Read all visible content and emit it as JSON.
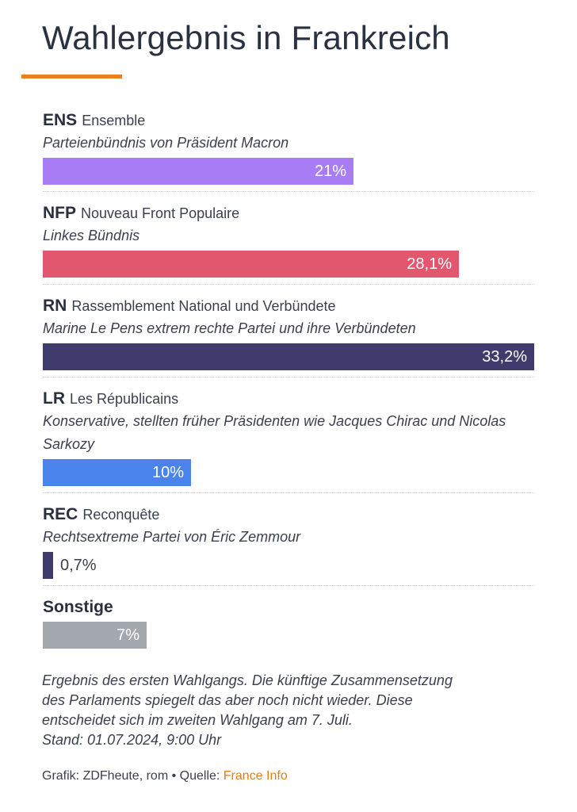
{
  "header": {
    "title": "Wahlergebnis in Frankreich",
    "accent_color": "#ee7f1d"
  },
  "chart_data": {
    "type": "bar",
    "orientation": "horizontal",
    "value_unit": "%",
    "xlim": [
      0,
      33.2
    ],
    "series": [
      {
        "abbr": "ENS",
        "name": "Ensemble",
        "description": "Parteienbündnis von Präsident Macron",
        "value": 21,
        "label": "21%",
        "color": "#a77cf5"
      },
      {
        "abbr": "NFP",
        "name": "Nouveau Front Populaire",
        "description": "Linkes Bündnis",
        "value": 28.1,
        "label": "28,1%",
        "color": "#e2566e"
      },
      {
        "abbr": "RN",
        "name": "Rassemblement National und Verbündete",
        "description": "Marine Le Pens extrem rechte Partei und ihre Verbündeten",
        "value": 33.2,
        "label": "33,2%",
        "color": "#3f3b6c"
      },
      {
        "abbr": "LR",
        "name": "Les Républicains",
        "description": "Konservative, stellten früher Präsidenten wie Jacques Chirac und Nicolas Sarkozy",
        "value": 10,
        "label": "10%",
        "color": "#4a83ea"
      },
      {
        "abbr": "REC",
        "name": "Reconquête",
        "description": "Rechtsextreme Partei von Éric Zemmour",
        "value": 0.7,
        "label": "0,7%",
        "color": "#3f3b6c"
      },
      {
        "abbr": "Sonstige",
        "name": "",
        "description": "",
        "value": 7,
        "label": "7%",
        "color": "#a3a7ae"
      }
    ]
  },
  "footer": {
    "note_line1": "Ergebnis des ersten Wahlgangs. Die künftige Zusammensetzung",
    "note_line2": "des Parlaments spiegelt das aber noch nicht wieder. Diese",
    "note_line3": "entscheidet sich im zweiten Wahlgang am 7. Juli.",
    "note_line4": "Stand: 01.07.2024, 9:00 Uhr",
    "credit": "Grafik: ZDFheute, rom • Quelle: ",
    "source_link": "France Info",
    "source_color": "#e87b14"
  }
}
